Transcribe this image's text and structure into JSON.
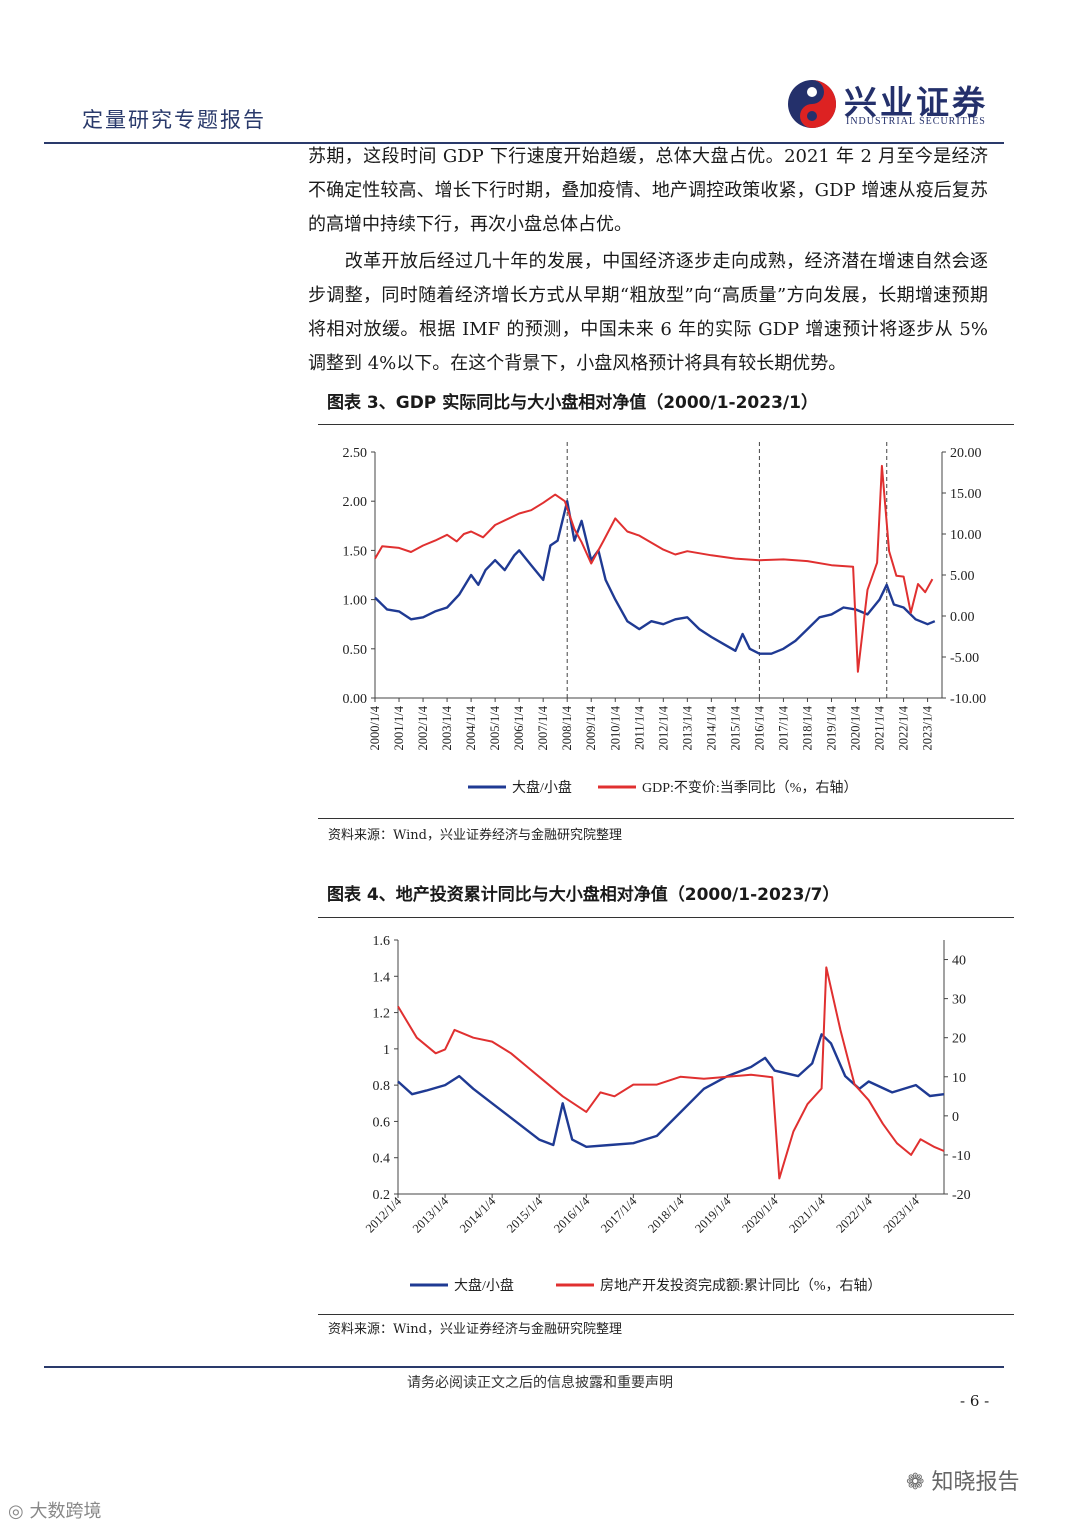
{
  "header": {
    "title": "定量研究专题报告",
    "logo_cn": "兴业证券",
    "logo_en": "INDUSTRIAL SECURITIES"
  },
  "paragraphs": [
    "苏期，这段时间 GDP 下行速度开始趋缓，总体大盘占优。2021 年 2 月至今是经济不确定性较高、增长下行时期，叠加疫情、地产调控政策收紧，GDP 增速从疫后复苏的高增中持续下行，再次小盘总体占优。",
    "　　改革开放后经过几十年的发展，中国经济逐步走向成熟，经济潜在增速自然会逐步调整，同时随着经济增长方式从早期“粗放型”向“高质量”方向发展，长期增速预期将相对放缓。根据 IMF 的预测，中国未来 6 年的实际 GDP 增速预计将逐步从 5%调整到 4%以下。在这个背景下，小盘风格预计将具有较长期优势。"
  ],
  "figure3": {
    "title": "图表 3、GDP 实际同比与大小盘相对净值（2000/1-2023/1）",
    "source": "资料来源：Wind，兴业证券经济与金融研究院整理",
    "chart_data": {
      "type": "line",
      "x_ticks": [
        "2000/1/4",
        "2001/1/4",
        "2002/1/4",
        "2003/1/4",
        "2004/1/4",
        "2005/1/4",
        "2006/1/4",
        "2007/1/4",
        "2008/1/4",
        "2009/1/4",
        "2010/1/4",
        "2011/1/4",
        "2012/1/4",
        "2013/1/4",
        "2014/1/4",
        "2015/1/4",
        "2016/1/4",
        "2017/1/4",
        "2018/1/4",
        "2019/1/4",
        "2020/1/4",
        "2021/1/4",
        "2022/1/4",
        "2023/1/4"
      ],
      "y_left_ticks": [
        "0.00",
        "0.50",
        "1.00",
        "1.50",
        "2.00",
        "2.50"
      ],
      "y_right_ticks": [
        "-10.00",
        "-5.00",
        "0.00",
        "5.00",
        "10.00",
        "15.00",
        "20.00"
      ],
      "ylim_left": [
        0,
        2.5
      ],
      "ylim_right": [
        -10,
        20
      ],
      "vlines_year": [
        2008,
        2016,
        2021.3
      ],
      "series": [
        {
          "name": "大盘/小盘",
          "axis": "left",
          "color": "#1f3a93",
          "points": [
            [
              2000,
              1.02
            ],
            [
              2000.5,
              0.9
            ],
            [
              2001,
              0.88
            ],
            [
              2001.5,
              0.8
            ],
            [
              2002,
              0.82
            ],
            [
              2002.5,
              0.88
            ],
            [
              2003,
              0.92
            ],
            [
              2003.5,
              1.05
            ],
            [
              2004,
              1.25
            ],
            [
              2004.3,
              1.15
            ],
            [
              2004.6,
              1.3
            ],
            [
              2005,
              1.4
            ],
            [
              2005.4,
              1.3
            ],
            [
              2005.8,
              1.45
            ],
            [
              2006,
              1.5
            ],
            [
              2006.5,
              1.35
            ],
            [
              2007,
              1.2
            ],
            [
              2007.3,
              1.55
            ],
            [
              2007.6,
              1.6
            ],
            [
              2008,
              2.0
            ],
            [
              2008.3,
              1.6
            ],
            [
              2008.6,
              1.8
            ],
            [
              2009,
              1.4
            ],
            [
              2009.3,
              1.5
            ],
            [
              2009.6,
              1.2
            ],
            [
              2010,
              1.0
            ],
            [
              2010.5,
              0.78
            ],
            [
              2011,
              0.7
            ],
            [
              2011.5,
              0.78
            ],
            [
              2012,
              0.75
            ],
            [
              2012.5,
              0.8
            ],
            [
              2013,
              0.82
            ],
            [
              2013.5,
              0.7
            ],
            [
              2014,
              0.62
            ],
            [
              2014.5,
              0.55
            ],
            [
              2015,
              0.48
            ],
            [
              2015.3,
              0.65
            ],
            [
              2015.6,
              0.5
            ],
            [
              2016,
              0.45
            ],
            [
              2016.5,
              0.45
            ],
            [
              2017,
              0.5
            ],
            [
              2017.5,
              0.58
            ],
            [
              2018,
              0.7
            ],
            [
              2018.5,
              0.82
            ],
            [
              2019,
              0.85
            ],
            [
              2019.5,
              0.92
            ],
            [
              2020,
              0.9
            ],
            [
              2020.5,
              0.85
            ],
            [
              2021,
              1.0
            ],
            [
              2021.3,
              1.15
            ],
            [
              2021.6,
              0.95
            ],
            [
              2022,
              0.92
            ],
            [
              2022.5,
              0.8
            ],
            [
              2023,
              0.75
            ],
            [
              2023.3,
              0.78
            ]
          ]
        },
        {
          "name": "GDP:不变价:当季同比（%，右轴）",
          "axis": "right",
          "color": "#e03030",
          "points": [
            [
              2000,
              7.0
            ],
            [
              2000.3,
              8.5
            ],
            [
              2001,
              8.3
            ],
            [
              2001.5,
              7.8
            ],
            [
              2002,
              8.6
            ],
            [
              2002.5,
              9.2
            ],
            [
              2003,
              9.9
            ],
            [
              2003.4,
              9.1
            ],
            [
              2003.7,
              10.0
            ],
            [
              2004,
              10.3
            ],
            [
              2004.5,
              9.6
            ],
            [
              2005,
              11.1
            ],
            [
              2006,
              12.5
            ],
            [
              2006.5,
              12.9
            ],
            [
              2007,
              13.8
            ],
            [
              2007.5,
              14.8
            ],
            [
              2007.9,
              14.0
            ],
            [
              2008.3,
              10.6
            ],
            [
              2008.6,
              9.0
            ],
            [
              2009,
              6.4
            ],
            [
              2009.5,
              9.1
            ],
            [
              2010,
              11.9
            ],
            [
              2010.5,
              10.3
            ],
            [
              2011,
              9.8
            ],
            [
              2012,
              8.1
            ],
            [
              2012.5,
              7.5
            ],
            [
              2013,
              7.9
            ],
            [
              2014,
              7.4
            ],
            [
              2015,
              7.0
            ],
            [
              2016,
              6.8
            ],
            [
              2017,
              6.9
            ],
            [
              2018,
              6.7
            ],
            [
              2019,
              6.2
            ],
            [
              2019.9,
              6.0
            ],
            [
              2020.1,
              -6.8
            ],
            [
              2020.5,
              3.2
            ],
            [
              2020.9,
              6.5
            ],
            [
              2021.1,
              18.3
            ],
            [
              2021.4,
              7.9
            ],
            [
              2021.7,
              4.9
            ],
            [
              2022,
              4.8
            ],
            [
              2022.3,
              0.4
            ],
            [
              2022.6,
              3.9
            ],
            [
              2022.9,
              2.9
            ],
            [
              2023.2,
              4.5
            ]
          ]
        }
      ]
    }
  },
  "figure4": {
    "title": "图表 4、地产投资累计同比与大小盘相对净值（2000/1-2023/7）",
    "source": "资料来源：Wind，兴业证券经济与金融研究院整理",
    "chart_data": {
      "type": "line",
      "x_ticks": [
        "2012/1/4",
        "2013/1/4",
        "2014/1/4",
        "2015/1/4",
        "2016/1/4",
        "2017/1/4",
        "2018/1/4",
        "2019/1/4",
        "2020/1/4",
        "2021/1/4",
        "2022/1/4",
        "2023/1/4"
      ],
      "y_left_ticks": [
        "0.2",
        "0.4",
        "0.6",
        "0.8",
        "1",
        "1.2",
        "1.4",
        "1.6"
      ],
      "y_right_ticks": [
        "-20",
        "-10",
        "0",
        "10",
        "20",
        "30",
        "40"
      ],
      "ylim_left": [
        0.2,
        1.6
      ],
      "ylim_right": [
        -20,
        45
      ],
      "series": [
        {
          "name": "大盘/小盘",
          "axis": "left",
          "color": "#1f3a93",
          "points": [
            [
              2012,
              0.82
            ],
            [
              2012.3,
              0.75
            ],
            [
              2012.6,
              0.77
            ],
            [
              2013,
              0.8
            ],
            [
              2013.3,
              0.85
            ],
            [
              2013.6,
              0.78
            ],
            [
              2014,
              0.7
            ],
            [
              2014.5,
              0.6
            ],
            [
              2015,
              0.5
            ],
            [
              2015.3,
              0.47
            ],
            [
              2015.5,
              0.7
            ],
            [
              2015.7,
              0.5
            ],
            [
              2016,
              0.46
            ],
            [
              2016.5,
              0.47
            ],
            [
              2017,
              0.48
            ],
            [
              2017.5,
              0.52
            ],
            [
              2018,
              0.65
            ],
            [
              2018.5,
              0.78
            ],
            [
              2019,
              0.85
            ],
            [
              2019.5,
              0.9
            ],
            [
              2019.8,
              0.95
            ],
            [
              2020,
              0.88
            ],
            [
              2020.5,
              0.85
            ],
            [
              2020.8,
              0.92
            ],
            [
              2021,
              1.08
            ],
            [
              2021.2,
              1.03
            ],
            [
              2021.5,
              0.85
            ],
            [
              2021.8,
              0.78
            ],
            [
              2022,
              0.82
            ],
            [
              2022.5,
              0.76
            ],
            [
              2023,
              0.8
            ],
            [
              2023.3,
              0.74
            ],
            [
              2023.6,
              0.75
            ]
          ]
        },
        {
          "name": "房地产开发投资完成额:累计同比（%，右轴）",
          "axis": "right",
          "color": "#e03030",
          "points": [
            [
              2012,
              28
            ],
            [
              2012.4,
              20
            ],
            [
              2012.8,
              16
            ],
            [
              2013,
              17
            ],
            [
              2013.2,
              22
            ],
            [
              2013.6,
              20
            ],
            [
              2014,
              19
            ],
            [
              2014.4,
              16
            ],
            [
              2014.8,
              12
            ],
            [
              2015,
              10
            ],
            [
              2015.5,
              5
            ],
            [
              2016,
              1
            ],
            [
              2016.3,
              6
            ],
            [
              2016.6,
              5
            ],
            [
              2017,
              8
            ],
            [
              2017.5,
              8
            ],
            [
              2018,
              10
            ],
            [
              2018.5,
              9.5
            ],
            [
              2019,
              10
            ],
            [
              2019.5,
              10.5
            ],
            [
              2019.95,
              9.9
            ],
            [
              2020.1,
              -16
            ],
            [
              2020.4,
              -4
            ],
            [
              2020.7,
              3
            ],
            [
              2021,
              7
            ],
            [
              2021.1,
              38
            ],
            [
              2021.4,
              22
            ],
            [
              2021.7,
              8
            ],
            [
              2022,
              4
            ],
            [
              2022.3,
              -2
            ],
            [
              2022.6,
              -7
            ],
            [
              2022.9,
              -10
            ],
            [
              2023.1,
              -6
            ],
            [
              2023.4,
              -8
            ],
            [
              2023.6,
              -9
            ]
          ]
        }
      ]
    }
  },
  "footer": {
    "note": "请务必阅读正文之后的信息披露和重要声明",
    "page": "- 6 -"
  },
  "watermarks": {
    "right": "知晓报告",
    "left": "大数跨境"
  }
}
